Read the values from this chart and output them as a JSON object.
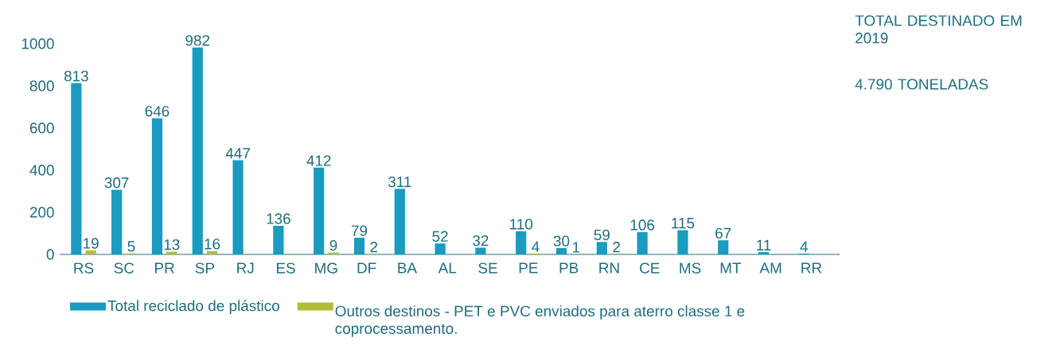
{
  "chart_data": {
    "type": "bar",
    "categories": [
      "RS",
      "SC",
      "PR",
      "SP",
      "RJ",
      "ES",
      "MG",
      "DF",
      "BA",
      "AL",
      "SE",
      "PE",
      "PB",
      "RN",
      "CE",
      "MS",
      "MT",
      "AM",
      "RR"
    ],
    "series": [
      {
        "name": "Total reciclado de plástico",
        "color": "#1a9bbf",
        "values": [
          813,
          307,
          646,
          982,
          447,
          136,
          412,
          79,
          311,
          52,
          32,
          110,
          30,
          59,
          106,
          115,
          67,
          11,
          4
        ]
      },
      {
        "name": "Outros destinos - PET e PVC enviados para aterro classe 1 e coprocessamento.",
        "color": "#b3bd3a",
        "values": [
          19,
          5,
          13,
          16,
          null,
          null,
          9,
          2,
          null,
          null,
          null,
          4,
          1,
          2,
          null,
          null,
          null,
          null,
          null
        ]
      }
    ],
    "ylim": [
      0,
      1000
    ],
    "yticks": [
      0,
      200,
      400,
      600,
      800,
      1000
    ],
    "data_labels": true,
    "legend": "bottom",
    "annotations": [
      "TOTAL DESTINADO EM 2019",
      "4.790 TONELADAS"
    ]
  }
}
